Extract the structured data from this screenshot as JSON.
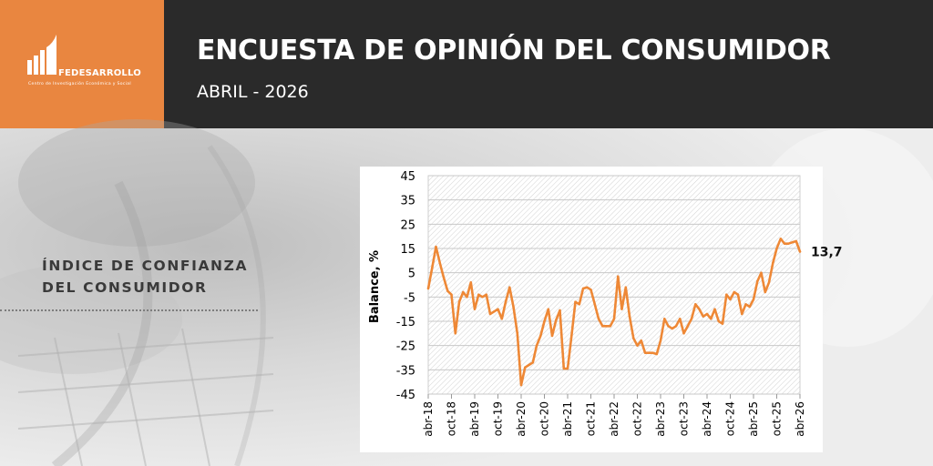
{
  "brand": {
    "name": "FEDESARROLLO",
    "tagline": "Centro de Investigación Económica y Social",
    "accent_color": "#e98640",
    "header_color": "#2a2a2a"
  },
  "header": {
    "title": "ENCUESTA DE OPINIÓN DEL CONSUMIDOR",
    "subtitle": "ABRIL - 2026"
  },
  "section": {
    "label_line1": "ÍNDICE DE CONFIANZA",
    "label_line2": "DEL CONSUMIDOR"
  },
  "chart_data": {
    "type": "line",
    "ylabel": "Balance, %",
    "xlabel": "",
    "ylim": [
      -45,
      45
    ],
    "yticks": [
      45,
      35,
      25,
      15,
      5,
      -5,
      -15,
      -25,
      -35,
      -45
    ],
    "xtick_labels": [
      "abr-18",
      "oct-18",
      "abr-19",
      "oct-19",
      "abr-20",
      "oct-20",
      "abr-21",
      "oct-21",
      "abr-22",
      "oct-22",
      "abr-23",
      "oct-23",
      "abr-24",
      "oct-24",
      "abr-25",
      "oct-25",
      "abr-26"
    ],
    "grid": "horizontal, hatched background",
    "line_color": "#ee8836",
    "last_label": "13,7",
    "series": [
      {
        "name": "",
        "x": [
          "abr-18",
          "may-18",
          "jun-18",
          "jul-18",
          "ago-18",
          "sep-18",
          "oct-18",
          "nov-18",
          "dic-18",
          "ene-19",
          "feb-19",
          "mar-19",
          "abr-19",
          "may-19",
          "jun-19",
          "jul-19",
          "ago-19",
          "sep-19",
          "oct-19",
          "nov-19",
          "dic-19",
          "ene-20",
          "feb-20",
          "mar-20",
          "abr-20",
          "may-20",
          "jun-20",
          "jul-20",
          "ago-20",
          "sep-20",
          "oct-20",
          "nov-20",
          "dic-20",
          "ene-21",
          "feb-21",
          "mar-21",
          "abr-21",
          "may-21",
          "jun-21",
          "jul-21",
          "ago-21",
          "sep-21",
          "oct-21",
          "nov-21",
          "dic-21",
          "ene-22",
          "feb-22",
          "mar-22",
          "abr-22",
          "may-22",
          "jun-22",
          "jul-22",
          "ago-22",
          "sep-22",
          "oct-22",
          "nov-22",
          "dic-22",
          "ene-23",
          "feb-23",
          "mar-23",
          "abr-23",
          "may-23",
          "jun-23",
          "jul-23",
          "ago-23",
          "sep-23",
          "oct-23",
          "nov-23",
          "dic-23",
          "ene-24",
          "feb-24",
          "mar-24",
          "abr-24",
          "may-24",
          "jun-24",
          "jul-24",
          "ago-24",
          "sep-24",
          "oct-24",
          "nov-24",
          "dic-24",
          "ene-25",
          "feb-25",
          "mar-25",
          "abr-25",
          "may-25",
          "jun-25",
          "jul-25",
          "ago-25",
          "sep-25",
          "oct-25",
          "nov-25",
          "dic-25",
          "ene-26",
          "feb-26",
          "mar-26",
          "abr-26"
        ],
        "values": [
          -1.5,
          7,
          15.7,
          9,
          3,
          -2.5,
          -4,
          -20,
          -7,
          -3,
          -5,
          1,
          -10,
          -4,
          -5,
          -4,
          -12,
          -11,
          -10,
          -14,
          -7,
          -1,
          -9,
          -20,
          -41.3,
          -34,
          -33,
          -32,
          -25,
          -21,
          -15,
          -10,
          -21,
          -14.5,
          -10.5,
          -34.5,
          -34.5,
          -21,
          -7,
          -8,
          -1.5,
          -1,
          -2,
          -8,
          -14,
          -17,
          -17,
          -17,
          -14,
          3.5,
          -10,
          -1,
          -13,
          -22,
          -25,
          -23,
          -28,
          -28,
          -28,
          -28.5,
          -23,
          -14,
          -17,
          -18,
          -17,
          -14,
          -20,
          -17,
          -14,
          -8,
          -10,
          -13,
          -12,
          -14,
          -10,
          -15,
          -16,
          -4,
          -6,
          -3,
          -4,
          -12,
          -8,
          -9,
          -6,
          1.5,
          5,
          -3,
          1,
          9,
          15,
          19,
          17,
          17,
          17.5,
          18,
          13.7
        ]
      }
    ]
  }
}
